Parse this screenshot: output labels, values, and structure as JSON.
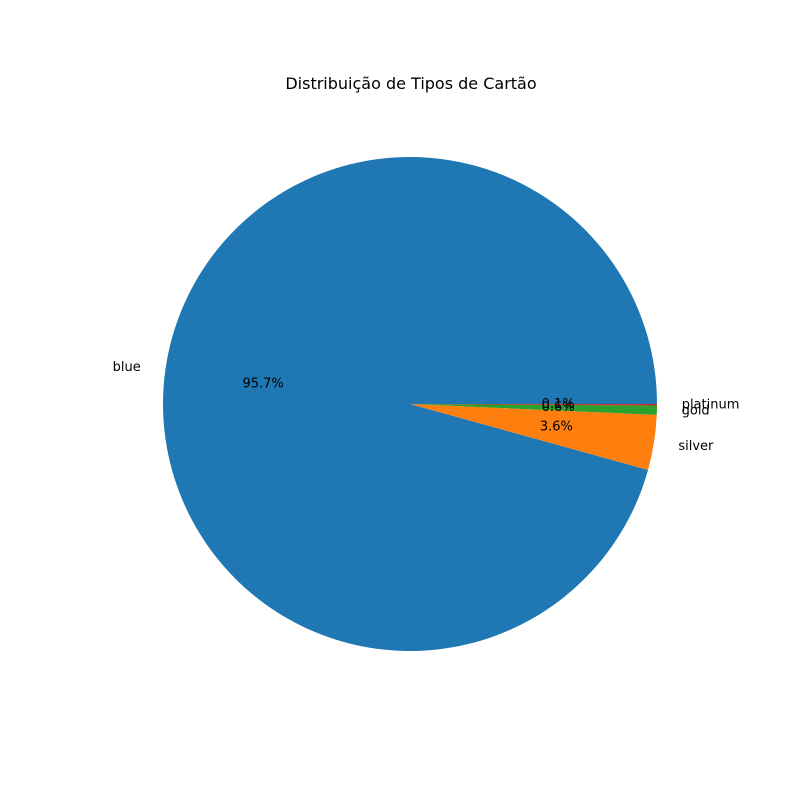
{
  "chart_data": {
    "type": "pie",
    "title": "Distribuição de Tipos de Cartão",
    "labels": [
      "blue",
      "silver",
      "gold",
      "platinum"
    ],
    "values": [
      95.7,
      3.6,
      0.6,
      0.1
    ],
    "percent_labels": [
      "95.7%",
      "3.6%",
      "0.6%",
      "0.1%"
    ],
    "colors": [
      "#1f77b4",
      "#ff7f0e",
      "#2ca02c",
      "#d62728"
    ],
    "start_angle_deg": 0,
    "direction": "counterclockwise",
    "legend": "none"
  }
}
